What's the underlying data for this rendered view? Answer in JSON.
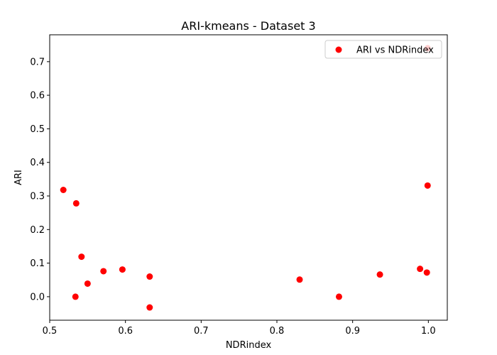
{
  "chart_data": {
    "type": "scatter",
    "title": "ARI-kmeans - Dataset 3",
    "xlabel": "NDRindex",
    "ylabel": "ARI",
    "xlim": [
      0.5,
      1.025
    ],
    "ylim": [
      -0.07,
      0.78
    ],
    "xticks": [
      "0.5",
      "0.6",
      "0.7",
      "0.8",
      "0.9",
      "1.0"
    ],
    "xtick_values": [
      0.5,
      0.6,
      0.7,
      0.8,
      0.9,
      1.0
    ],
    "yticks": [
      "0.0",
      "0.1",
      "0.2",
      "0.3",
      "0.4",
      "0.5",
      "0.6",
      "0.7"
    ],
    "ytick_values": [
      0.0,
      0.1,
      0.2,
      0.3,
      0.4,
      0.5,
      0.6,
      0.7
    ],
    "grid": false,
    "legend_position": "top-right",
    "series": [
      {
        "name": "ARI vs NDRindex",
        "color": "#ff0000",
        "points": [
          {
            "x": 0.518,
            "y": 0.318
          },
          {
            "x": 0.535,
            "y": 0.278
          },
          {
            "x": 0.534,
            "y": 0.0
          },
          {
            "x": 0.542,
            "y": 0.119
          },
          {
            "x": 0.55,
            "y": 0.039
          },
          {
            "x": 0.571,
            "y": 0.076
          },
          {
            "x": 0.596,
            "y": 0.081
          },
          {
            "x": 0.632,
            "y": 0.06
          },
          {
            "x": 0.632,
            "y": -0.032
          },
          {
            "x": 0.83,
            "y": 0.051
          },
          {
            "x": 0.882,
            "y": 0.0
          },
          {
            "x": 0.936,
            "y": 0.066
          },
          {
            "x": 0.989,
            "y": 0.083
          },
          {
            "x": 0.998,
            "y": 0.072
          },
          {
            "x": 0.999,
            "y": 0.331
          },
          {
            "x": 0.999,
            "y": 0.74
          }
        ]
      }
    ]
  }
}
